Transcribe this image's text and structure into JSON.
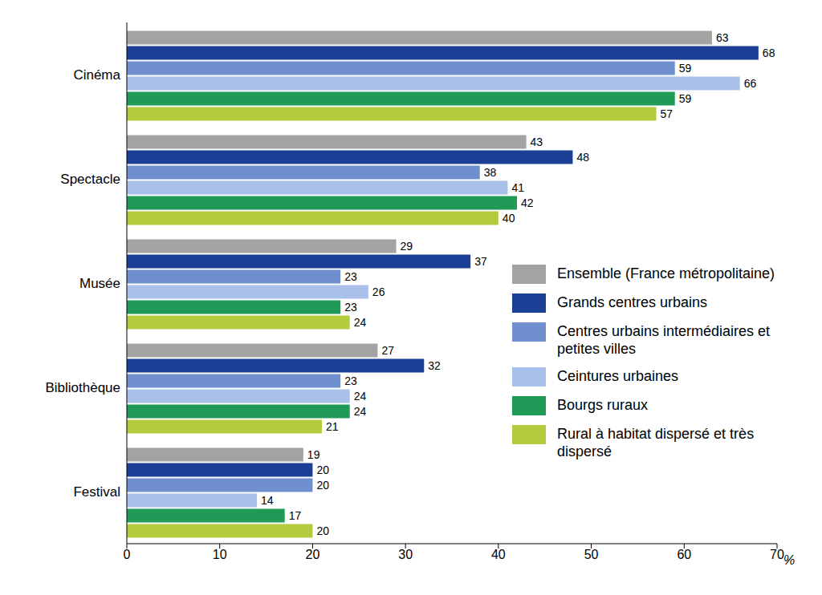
{
  "chart_data": {
    "type": "bar",
    "orientation": "horizontal",
    "xlabel": "%",
    "categories": [
      "Cinéma",
      "Spectacle",
      "Musée",
      "Bibliothèque",
      "Festival"
    ],
    "series": [
      {
        "name": "Ensemble (France métropolitaine)",
        "color": "#a3a3a3",
        "values": [
          63,
          43,
          29,
          27,
          19
        ]
      },
      {
        "name": "Grands centres urbains",
        "color": "#1b3f94",
        "values": [
          68,
          48,
          37,
          32,
          20
        ]
      },
      {
        "name": "Centres urbains intermédiaires et petites villes",
        "color": "#6f8fcf",
        "values": [
          59,
          38,
          23,
          23,
          20
        ]
      },
      {
        "name": "Ceintures urbaines",
        "color": "#a9c1ea",
        "values": [
          66,
          41,
          26,
          24,
          14
        ]
      },
      {
        "name": "Bourgs ruraux",
        "color": "#1f9a57",
        "values": [
          59,
          42,
          23,
          24,
          17
        ]
      },
      {
        "name": "Rural à habitat dispersé et très dispersé",
        "color": "#b3cc3d",
        "values": [
          57,
          40,
          24,
          21,
          20
        ]
      }
    ],
    "xlim": [
      0,
      70
    ],
    "xticks": [
      0,
      10,
      20,
      30,
      40,
      50,
      60,
      70
    ],
    "grid": false,
    "data_labels": true,
    "legend": "lower right"
  }
}
